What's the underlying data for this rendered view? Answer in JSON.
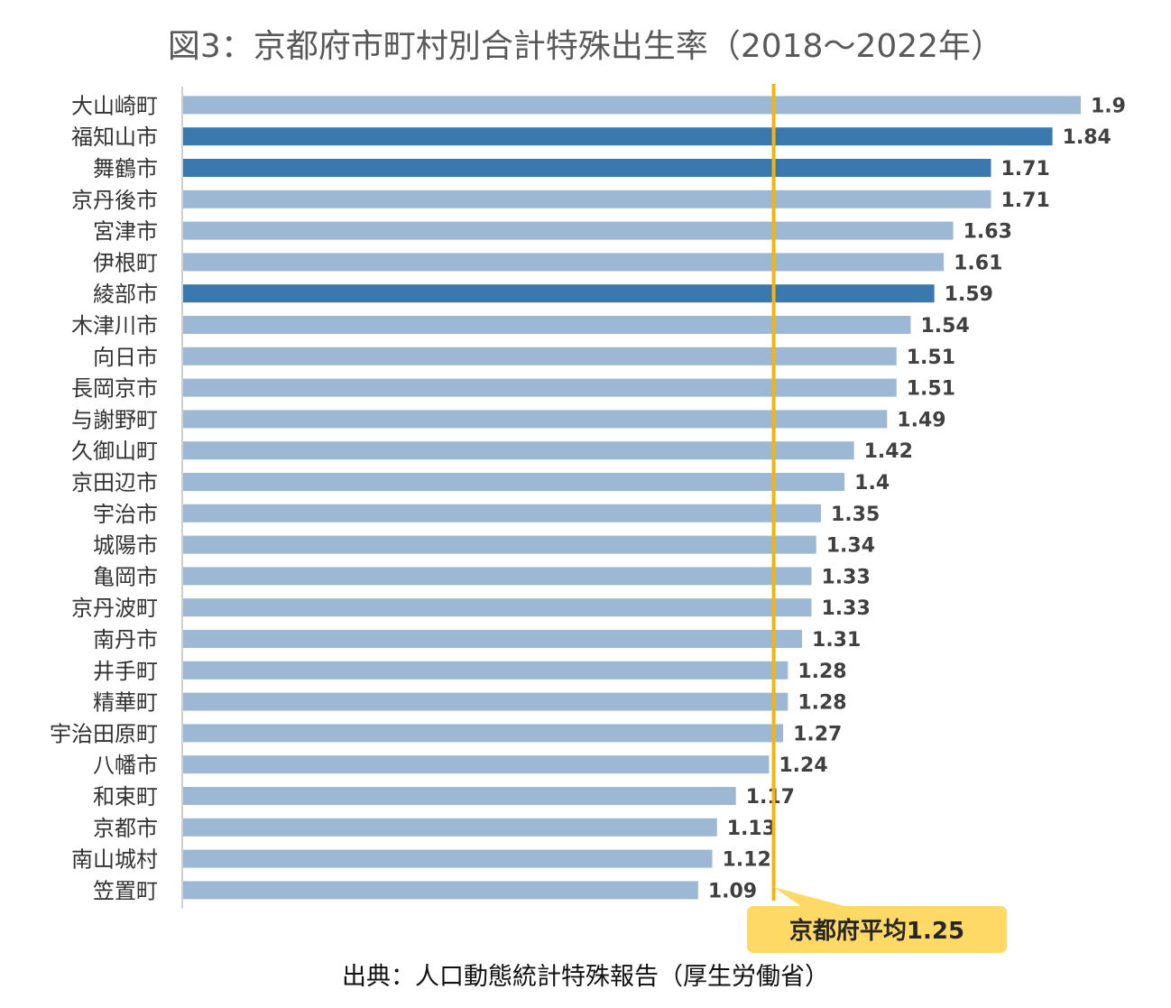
{
  "chart_data": {
    "type": "bar",
    "orientation": "horizontal",
    "title": "図3：京都府市町村別合計特殊出生率（2018～2022年）",
    "source": "出典：人口動態統計特殊報告（厚生労働省）",
    "categories": [
      "大山崎町",
      "福知山市",
      "舞鶴市",
      "京丹後市",
      "宮津市",
      "伊根町",
      "綾部市",
      "木津川市",
      "向日市",
      "長岡京市",
      "与謝野町",
      "久御山町",
      "京田辺市",
      "宇治市",
      "城陽市",
      "亀岡市",
      "京丹波町",
      "南丹市",
      "井手町",
      "精華町",
      "宇治田原町",
      "八幡市",
      "和束町",
      "京都市",
      "南山城村",
      "笠置町"
    ],
    "values": [
      1.9,
      1.84,
      1.71,
      1.71,
      1.63,
      1.61,
      1.59,
      1.54,
      1.51,
      1.51,
      1.49,
      1.42,
      1.4,
      1.35,
      1.34,
      1.33,
      1.33,
      1.31,
      1.28,
      1.28,
      1.27,
      1.24,
      1.17,
      1.13,
      1.12,
      1.09
    ],
    "value_labels": [
      "1.9",
      "1.84",
      "1.71",
      "1.71",
      "1.63",
      "1.61",
      "1.59",
      "1.54",
      "1.51",
      "1.51",
      "1.49",
      "1.42",
      "1.4",
      "1.35",
      "1.34",
      "1.33",
      "1.33",
      "1.31",
      "1.28",
      "1.28",
      "1.27",
      "1.24",
      "1.17",
      "1.13",
      "1.12",
      "1.09"
    ],
    "highlighted": [
      "福知山市",
      "舞鶴市",
      "綾部市"
    ],
    "colors": {
      "bar": "#9db8d4",
      "highlight": "#3b78ad",
      "average_line": "#f7b500",
      "average_box": "#ffd966"
    },
    "reference_line": {
      "value": 1.25,
      "label": "京都府平均1.25"
    },
    "xlim": [
      0,
      1.9
    ],
    "grid": false,
    "legend": "none"
  }
}
